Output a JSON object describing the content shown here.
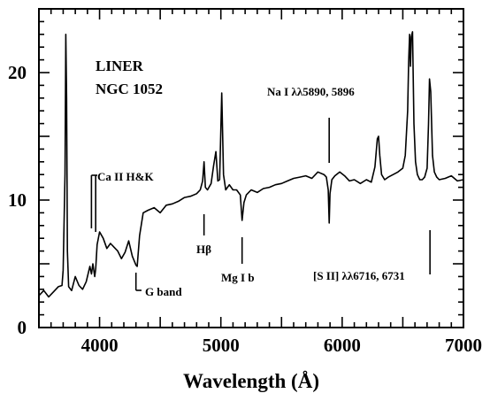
{
  "chart_data": {
    "type": "line",
    "title": "LINER",
    "subtitle": "NGC 1052",
    "xlabel": "Wavelength (Å)",
    "ylabel": "",
    "xlim": [
      3500,
      7000
    ],
    "ylim": [
      0,
      25
    ],
    "grid": false,
    "legend": "none",
    "x_ticks": [
      4000,
      5000,
      6000,
      7000
    ],
    "x_tick_labels": [
      "4000",
      "5000",
      "6000",
      "7000"
    ],
    "y_ticks": [
      0,
      10,
      20
    ],
    "y_tick_labels": [
      "0",
      "10",
      "20"
    ],
    "series": [
      {
        "x": [
          3500,
          3540,
          3580,
          3620,
          3660,
          3690,
          3700,
          3715,
          3722,
          3728,
          3735,
          3745,
          3770,
          3800,
          3830,
          3860,
          3890,
          3920,
          3933,
          3945,
          3960,
          3968,
          3980,
          4000,
          4030,
          4060,
          4090,
          4120,
          4150,
          4180,
          4210,
          4240,
          4270,
          4300,
          4310,
          4330,
          4360,
          4400,
          4450,
          4500,
          4550,
          4600,
          4650,
          4700,
          4750,
          4800,
          4830,
          4850,
          4861,
          4872,
          4890,
          4920,
          4940,
          4959,
          4975,
          4990,
          5007,
          5022,
          5040,
          5070,
          5100,
          5130,
          5160,
          5175,
          5190,
          5210,
          5250,
          5300,
          5350,
          5400,
          5450,
          5500,
          5550,
          5600,
          5650,
          5700,
          5750,
          5800,
          5850,
          5870,
          5885,
          5893,
          5900,
          5915,
          5940,
          5980,
          6020,
          6060,
          6100,
          6150,
          6200,
          6240,
          6270,
          6290,
          6300,
          6310,
          6325,
          6350,
          6380,
          6420,
          6460,
          6500,
          6520,
          6540,
          6548,
          6556,
          6563,
          6570,
          6580,
          6592,
          6605,
          6620,
          6640,
          6660,
          6680,
          6700,
          6712,
          6720,
          6730,
          6745,
          6760,
          6780,
          6800,
          6850,
          6900,
          6950,
          7000
        ],
        "y": [
          2.5,
          2.9,
          2.4,
          2.8,
          3.2,
          3.3,
          4.5,
          12.0,
          23.0,
          18.0,
          6.0,
          3.2,
          2.9,
          4.0,
          3.3,
          3.0,
          3.6,
          4.8,
          4.2,
          5.0,
          4.0,
          4.6,
          6.5,
          7.5,
          7.0,
          6.2,
          6.6,
          6.3,
          6.0,
          5.4,
          5.9,
          6.8,
          5.6,
          4.9,
          4.8,
          7.2,
          9.0,
          9.2,
          9.4,
          9.0,
          9.6,
          9.7,
          9.9,
          10.2,
          10.3,
          10.5,
          10.8,
          11.5,
          13.0,
          11.0,
          10.8,
          11.3,
          12.7,
          13.8,
          11.5,
          11.6,
          18.4,
          12.0,
          10.8,
          11.2,
          10.8,
          10.8,
          10.4,
          8.4,
          9.8,
          10.4,
          10.8,
          10.6,
          10.9,
          11.0,
          11.2,
          11.3,
          11.5,
          11.7,
          11.8,
          11.9,
          11.7,
          12.2,
          12.0,
          11.8,
          10.8,
          8.2,
          10.5,
          11.6,
          11.9,
          12.2,
          11.9,
          11.5,
          11.6,
          11.3,
          11.6,
          11.4,
          12.6,
          14.8,
          15.0,
          13.5,
          12.0,
          11.6,
          11.8,
          12.0,
          12.2,
          12.5,
          13.5,
          17.0,
          20.8,
          23.0,
          20.5,
          22.8,
          23.2,
          16.0,
          13.0,
          12.0,
          11.6,
          11.6,
          11.8,
          12.5,
          16.0,
          19.5,
          18.5,
          13.5,
          12.2,
          11.8,
          11.6,
          11.7,
          11.9,
          11.5,
          11.6
        ]
      }
    ],
    "annotations": [
      {
        "text": "Ca II H&K",
        "x": [
          3933,
          3968
        ]
      },
      {
        "text": "G band",
        "x": 4300
      },
      {
        "text": "Hβ",
        "x": 4861
      },
      {
        "text": "Mg I b",
        "x": 5175
      },
      {
        "text": "Na I λλ5890, 5896",
        "x": 5893
      },
      {
        "text": "[S II] λλ6716, 6731",
        "x": 6724
      }
    ]
  }
}
